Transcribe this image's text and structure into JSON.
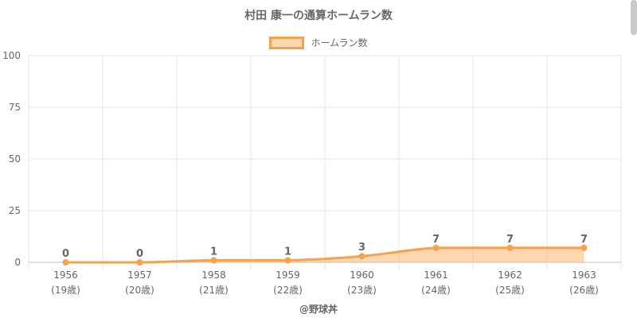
{
  "chart_data": {
    "type": "line",
    "title": "村田 康一の通算ホームラン数",
    "categories": [
      "1956",
      "1957",
      "1958",
      "1959",
      "1960",
      "1961",
      "1962",
      "1963"
    ],
    "sublabels": [
      "(19歳)",
      "(20歳)",
      "(21歳)",
      "(22歳)",
      "(23歳)",
      "(24歳)",
      "(25歳)",
      "(26歳)"
    ],
    "series": [
      {
        "name": "ホームラン数",
        "values": [
          0,
          0,
          1,
          1,
          3,
          7,
          7,
          7
        ]
      }
    ],
    "ylim": [
      0,
      100
    ],
    "yticks": [
      0,
      25,
      50,
      75,
      100
    ],
    "grid": true,
    "legend": "top",
    "fill": true,
    "colors": {
      "line": "#f7a24a",
      "fill": "rgba(252,176,96,0.5)",
      "text": "#666666",
      "grid": "#e5e5e5"
    }
  },
  "credit": "@野球丼"
}
